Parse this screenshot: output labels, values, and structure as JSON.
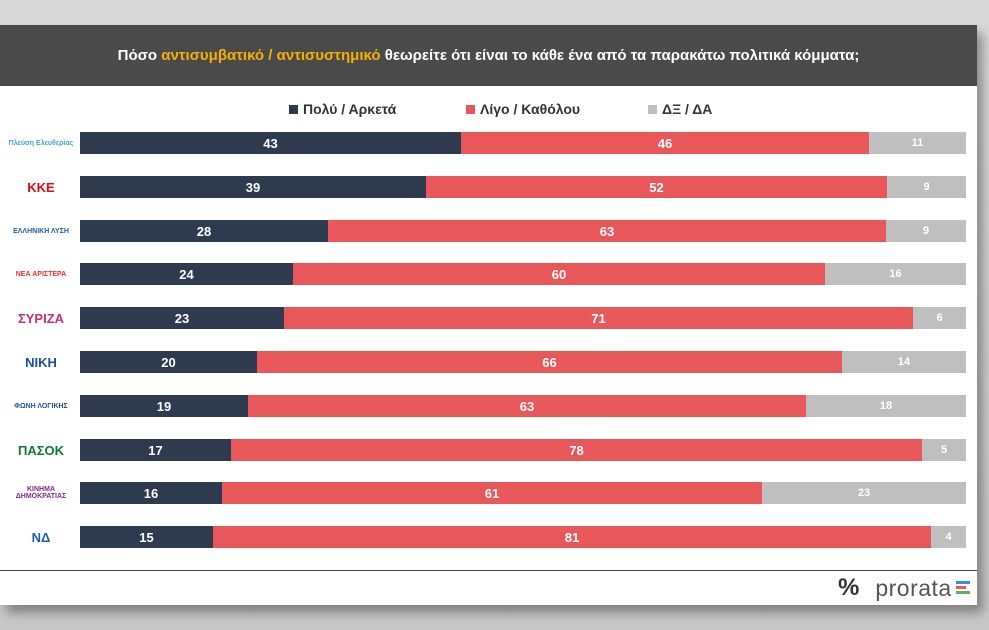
{
  "title": {
    "pre": "Πόσο",
    "hl1": "αντισυμβατικό",
    "sep": "/",
    "hl2": "αντισυστημικό",
    "post": "θεωρείτε ότι είναι το κάθε ένα από τα παρακάτω πολιτικά κόμματα;"
  },
  "colors": {
    "dark": "#2e3a4e",
    "red": "#e8585a",
    "gray": "#bfbfbf",
    "accent": "#f5b000",
    "header_bg": "#4a4a4a"
  },
  "legend": [
    {
      "label": "Πολύ / Αρκετά",
      "color": "#2e3a4e"
    },
    {
      "label": "Λίγο / Καθόλου",
      "color": "#e8585a"
    },
    {
      "label": "ΔΞ / ΔΑ",
      "color": "#bfbfbf"
    }
  ],
  "parties": [
    {
      "logo_text": "Πλεύση Ελευθερίας",
      "logo_color": "#3aa7c9",
      "icon": "sailboats-icon"
    },
    {
      "logo_text": "KKE",
      "logo_color": "#e30613",
      "icon": "hammer-sickle-icon"
    },
    {
      "logo_text": "ΕΛΛΗΝΙΚΗ ΛΥΣΗ",
      "logo_color": "#1f5fa8",
      "icon": "globe-icon"
    },
    {
      "logo_text": "ΝΕΑ ΑΡΙΣΤΕΡΑ",
      "logo_color": "#e3312d",
      "icon": "star-icon"
    },
    {
      "logo_text": "ΣΥΡΙΖΑ",
      "logo_color": "#c4307a",
      "icon": "syriza-icon"
    },
    {
      "logo_text": "NIKH",
      "logo_color": "#1a4fa0",
      "icon": "wings-icon"
    },
    {
      "logo_text": "ΦΩΝΗ ΛΟΓΙΚΗΣ",
      "logo_color": "#1f4f9c",
      "icon": "building-icon"
    },
    {
      "logo_text": "ΠΑΣΟΚ",
      "logo_color": "#0b7a3b",
      "icon": "sun-icon"
    },
    {
      "logo_text": "ΚΙΝΗΜΑ ΔΗΜΟΚΡΑΤΙΑΣ",
      "logo_color": "#7a2b8c",
      "icon": "flower-icon"
    },
    {
      "logo_text": "ΝΔ",
      "logo_color": "#1d5bb5",
      "icon": "nd-icon"
    }
  ],
  "chart_data": {
    "type": "bar",
    "stacked": "100%",
    "orientation": "horizontal",
    "series": [
      {
        "name": "Πολύ / Αρκετά",
        "values": [
          43,
          39,
          28,
          24,
          23,
          20,
          19,
          17,
          16,
          15
        ]
      },
      {
        "name": "Λίγο / Καθόλου",
        "values": [
          46,
          52,
          63,
          60,
          71,
          66,
          63,
          78,
          61,
          81
        ]
      },
      {
        "name": "ΔΞ / ΔΑ",
        "values": [
          11,
          9,
          9,
          16,
          6,
          14,
          18,
          5,
          23,
          4
        ]
      }
    ],
    "legend_position": "top",
    "grid": false
  },
  "footer": {
    "symbol": "%",
    "brand": "prorata"
  }
}
